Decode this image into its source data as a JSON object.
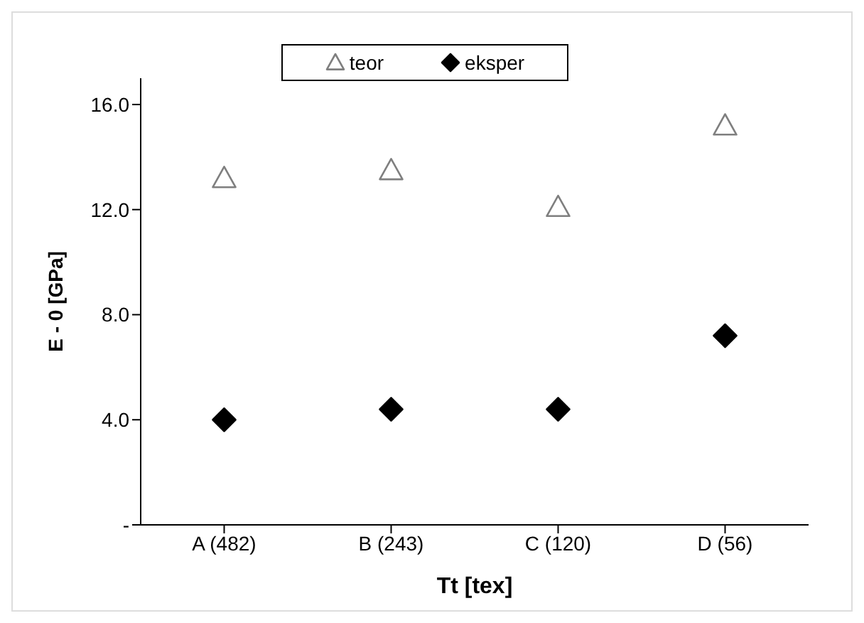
{
  "chart_data": {
    "type": "scatter",
    "xlabel": "Tt [tex]",
    "ylabel": "E - 0 [GPa]",
    "categories": [
      "A (482)",
      "B (243)",
      "C (120)",
      "D (56)"
    ],
    "series": [
      {
        "name": "teor",
        "color": "#7f7f7f",
        "marker": "triangle",
        "values": [
          13.2,
          13.5,
          12.1,
          15.2
        ]
      },
      {
        "name": "eksper",
        "color": "#000000",
        "marker": "diamond",
        "values": [
          4.0,
          4.4,
          4.4,
          7.2
        ]
      }
    ],
    "ylim": [
      0,
      17
    ],
    "yticks": [
      {
        "value": 0,
        "label": "-"
      },
      {
        "value": 4,
        "label": "4.0"
      },
      {
        "value": 8,
        "label": "8.0"
      },
      {
        "value": 12,
        "label": "12.0"
      },
      {
        "value": 16,
        "label": "16.0"
      }
    ],
    "grid": false,
    "legend": "top"
  }
}
